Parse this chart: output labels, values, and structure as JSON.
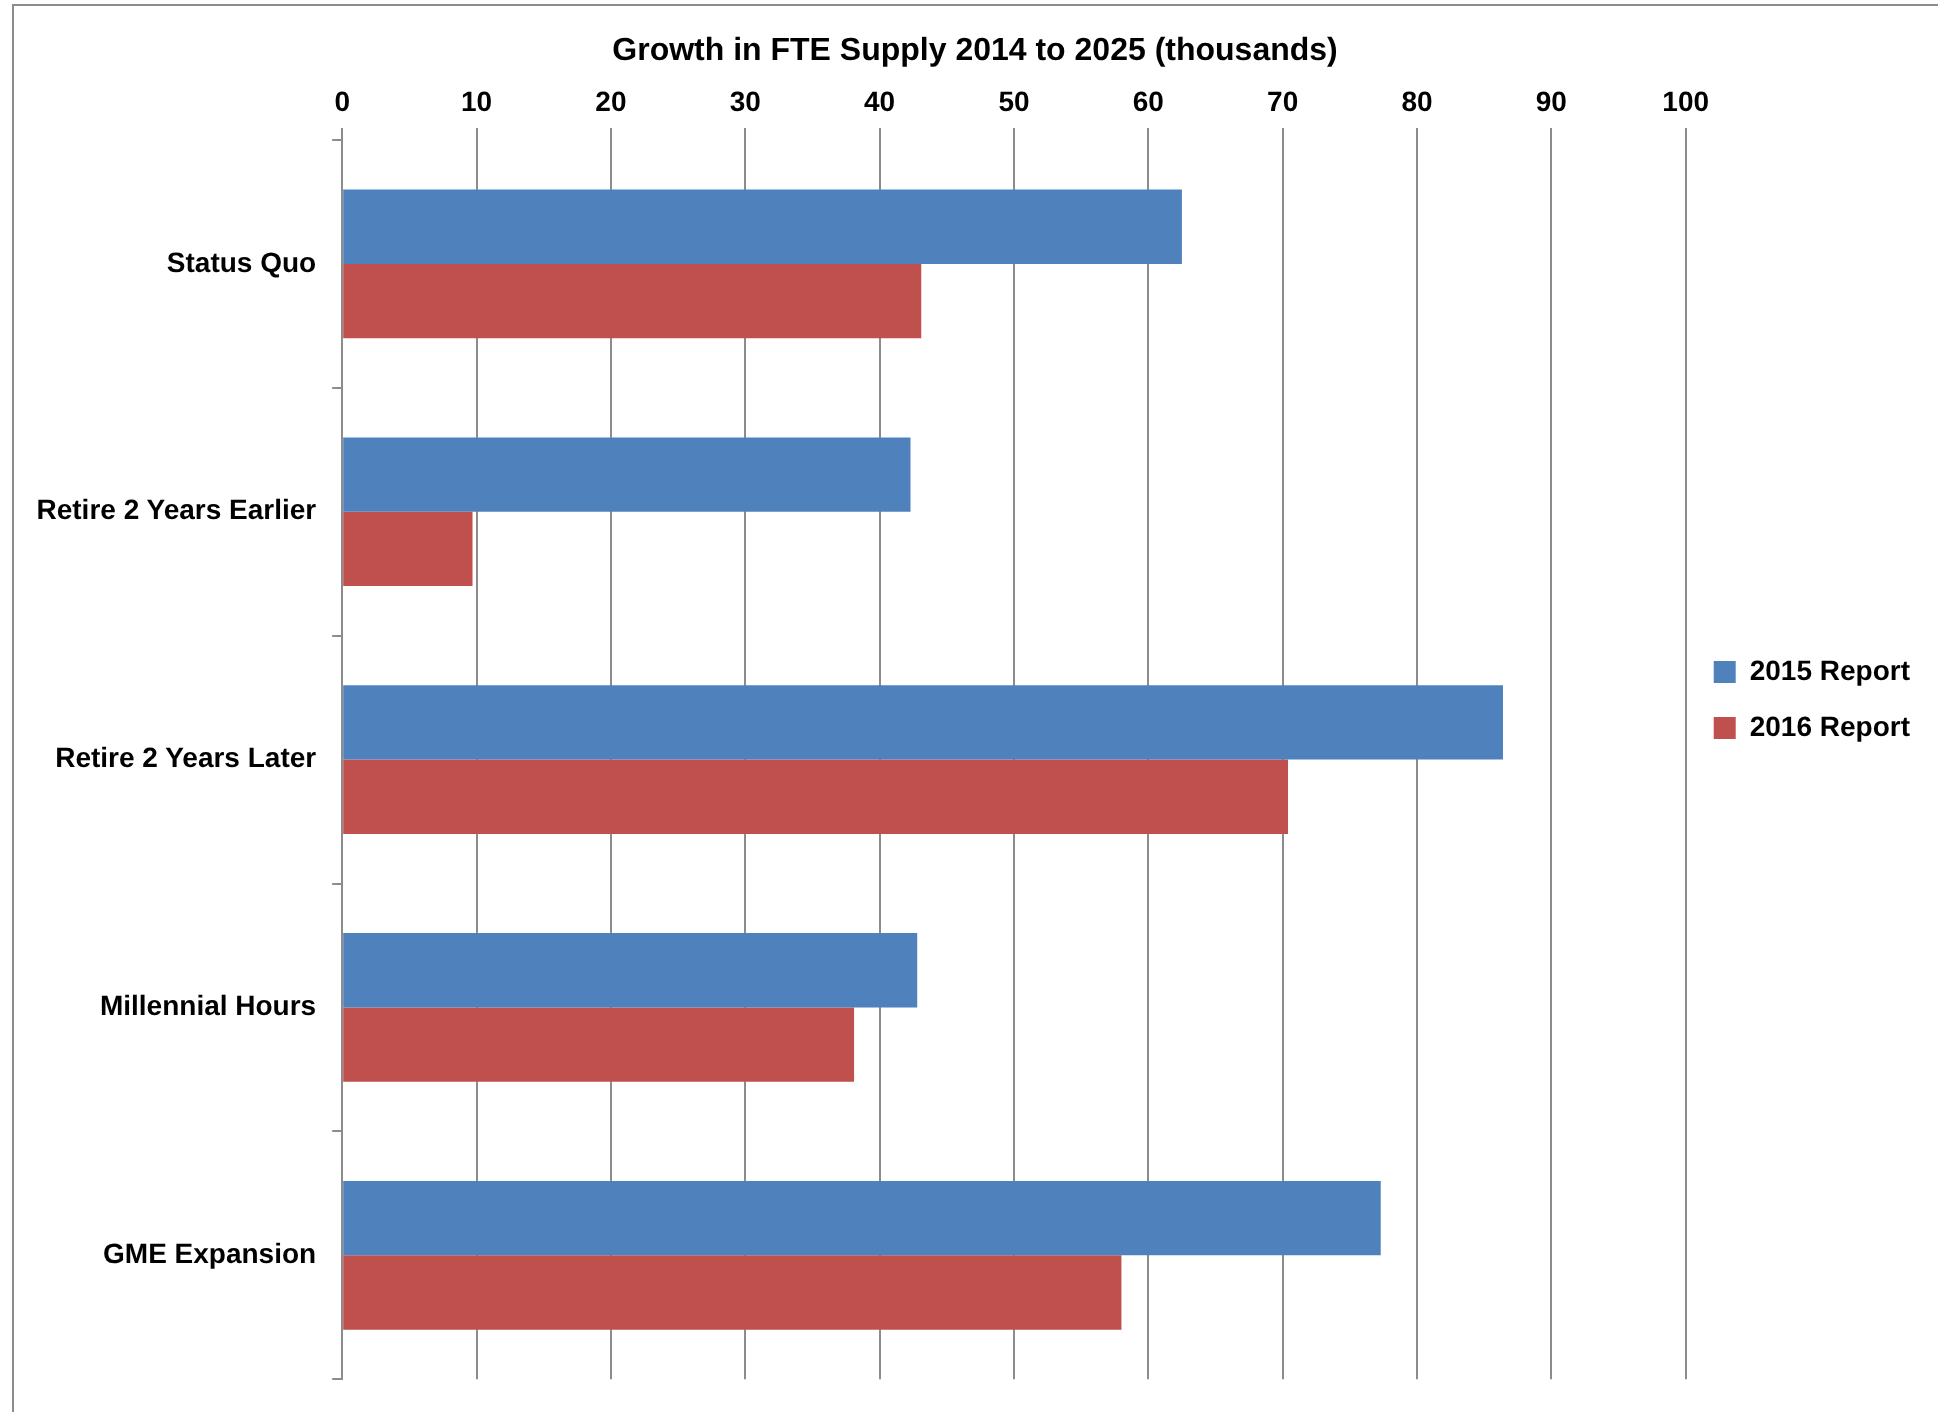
{
  "chart_data": {
    "type": "bar",
    "orientation": "horizontal",
    "title": "Growth in FTE Supply 2014 to 2025 (thousands)",
    "categories": [
      "Status Quo",
      "Retire 2 Years Earlier",
      "Retire 2 Years Later",
      "Millennial Hours",
      "GME Expansion"
    ],
    "series": [
      {
        "name": "2015 Report",
        "color": "#4f81bd",
        "values": [
          62.5,
          42.3,
          86.4,
          42.8,
          77.3
        ]
      },
      {
        "name": "2016 Report",
        "color": "#c0504d",
        "values": [
          43.1,
          9.7,
          70.4,
          38.1,
          58.0
        ]
      }
    ],
    "xlim": [
      0,
      100
    ],
    "xticks": [
      0,
      10,
      20,
      30,
      40,
      50,
      60,
      70,
      80,
      90,
      100
    ],
    "grid": "x",
    "legend": "right"
  }
}
